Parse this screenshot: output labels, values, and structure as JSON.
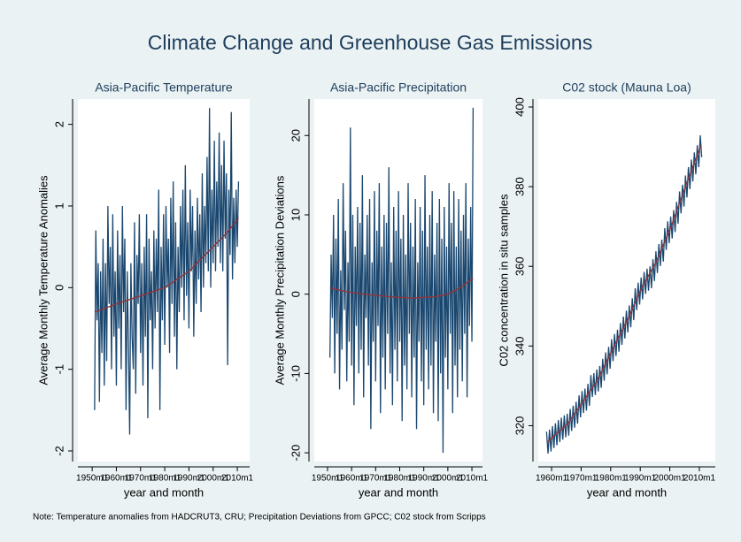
{
  "title": "Climate Change and Greenhouse Gas Emissions",
  "note": "Note: Temperature anomalies from HADCRUT3, CRU; Precipitation Deviations from GPCC; C02 stock from Scripps",
  "chart_data": [
    {
      "type": "line",
      "title": "Asia-Pacific Temperature",
      "xlabel": "year and month",
      "ylabel": "Average Monthly Temperature Anomalies",
      "xlim": [
        1944.1,
        2015.1
      ],
      "xticks": [
        {
          "value": 1950,
          "label": "1950m1"
        },
        {
          "value": 1960,
          "label": "1960m1"
        },
        {
          "value": 1970,
          "label": "1970m1"
        },
        {
          "value": 1980,
          "label": "1980m1"
        },
        {
          "value": 1990,
          "label": "1990m1"
        },
        {
          "value": 2000,
          "label": "2000m1"
        },
        {
          "value": 2010,
          "label": "2010m1"
        }
      ],
      "ylim": [
        -2.13,
        2.31
      ],
      "yticks": [
        -2,
        -1,
        0,
        1,
        2
      ],
      "series": [
        {
          "color": "#1a476f",
          "x": [
            1951,
            1951.5,
            1952,
            1952.5,
            1953,
            1953.5,
            1954,
            1954.5,
            1955,
            1955.5,
            1956,
            1956.5,
            1957,
            1957.5,
            1958,
            1958.5,
            1959,
            1959.5,
            1960,
            1960.5,
            1961,
            1961.5,
            1962,
            1962.5,
            1963,
            1963.5,
            1964,
            1964.5,
            1965,
            1965.5,
            1966,
            1966.5,
            1967,
            1967.5,
            1968,
            1968.5,
            1969,
            1969.5,
            1970,
            1970.5,
            1971,
            1971.5,
            1972,
            1972.5,
            1973,
            1973.5,
            1974,
            1974.5,
            1975,
            1975.5,
            1976,
            1976.5,
            1977,
            1977.5,
            1978,
            1978.5,
            1979,
            1979.5,
            1980,
            1980.5,
            1981,
            1981.5,
            1982,
            1982.5,
            1983,
            1983.5,
            1984,
            1984.5,
            1985,
            1985.5,
            1986,
            1986.5,
            1987,
            1987.5,
            1988,
            1988.5,
            1989,
            1989.5,
            1990,
            1990.5,
            1991,
            1991.5,
            1992,
            1992.5,
            1993,
            1993.5,
            1994,
            1994.5,
            1995,
            1995.5,
            1996,
            1996.5,
            1997,
            1997.5,
            1998,
            1998.5,
            1999,
            1999.5,
            2000,
            2000.5,
            2001,
            2001.5,
            2002,
            2002.5,
            2003,
            2003.5,
            2004,
            2004.5,
            2005,
            2005.5,
            2006,
            2006.5,
            2007,
            2007.5,
            2008,
            2008.5,
            2009,
            2009.5,
            2010,
            2010.5
          ],
          "values": [
            -1.5,
            0.7,
            -0.4,
            0.3,
            -1.4,
            0.2,
            -0.8,
            0.6,
            -1.2,
            0.3,
            -0.9,
            1.0,
            -0.2,
            0.5,
            -1.0,
            0.9,
            -0.6,
            0.2,
            -1.2,
            0.7,
            -0.5,
            0.4,
            -1.0,
            1.0,
            -0.3,
            0.6,
            -1.5,
            0.2,
            -0.7,
            -1.8,
            0.3,
            -0.6,
            -1.0,
            0.8,
            -1.3,
            0.4,
            -0.2,
            0.9,
            -0.8,
            0.3,
            -1.2,
            0.5,
            -0.6,
            0.9,
            -1.6,
            0.6,
            -0.4,
            0.2,
            -1.0,
            0.7,
            -0.5,
            0.6,
            -0.3,
            1.2,
            -1.5,
            0.5,
            -0.4,
            0.9,
            -0.7,
            1.0,
            0.0,
            0.6,
            -0.8,
            1.1,
            -0.2,
            1.3,
            -0.6,
            0.8,
            -1.0,
            0.5,
            -0.3,
            1.0,
            0.0,
            1.2,
            -0.4,
            1.5,
            -0.1,
            0.8,
            -0.5,
            1.2,
            0.2,
            1.0,
            -0.6,
            0.7,
            -0.2,
            1.1,
            0.1,
            0.9,
            -0.3,
            1.4,
            0.0,
            1.0,
            0.3,
            1.6,
            0.2,
            2.2,
            0.0,
            1.2,
            0.3,
            1.8,
            0.2,
            1.3,
            0.5,
            1.9,
            0.3,
            1.5,
            0.2,
            1.8,
            0.6,
            1.4,
            -0.95,
            1.2,
            0.4,
            2.15,
            0.1,
            1.1,
            0.3,
            1.2,
            0.5,
            1.3
          ]
        },
        {
          "color": "#90353b",
          "x": [
            1951,
            1960,
            1970,
            1980,
            1990,
            2000,
            2005,
            2010.5
          ],
          "values": [
            -0.3,
            -0.2,
            -0.1,
            0.0,
            0.2,
            0.5,
            0.65,
            0.85
          ]
        }
      ]
    },
    {
      "type": "line",
      "title": "Asia-Pacific Precipitation",
      "xlabel": "year and month",
      "ylabel": "Average Monthly Precipitation Deviations",
      "xlim": [
        1944.5,
        2014.4
      ],
      "xticks": [
        {
          "value": 1950,
          "label": "1950m1"
        },
        {
          "value": 1960,
          "label": "1960m1"
        },
        {
          "value": 1970,
          "label": "1970m1"
        },
        {
          "value": 1980,
          "label": "1980m1"
        },
        {
          "value": 1990,
          "label": "1990m1"
        },
        {
          "value": 2000,
          "label": "2000m1"
        },
        {
          "value": 2010,
          "label": "2010m1"
        }
      ],
      "ylim": [
        -21.1,
        24.6
      ],
      "yticks": [
        -20,
        -10,
        0,
        10,
        20
      ],
      "series": [
        {
          "color": "#1a476f",
          "x": [
            1951,
            1951.5,
            1952,
            1952.5,
            1953,
            1953.5,
            1954,
            1954.5,
            1955,
            1955.5,
            1956,
            1956.5,
            1957,
            1957.5,
            1958,
            1958.5,
            1959,
            1959.5,
            1960,
            1960.5,
            1961,
            1961.5,
            1962,
            1962.5,
            1963,
            1963.5,
            1964,
            1964.5,
            1965,
            1965.5,
            1966,
            1966.5,
            1967,
            1967.5,
            1968,
            1968.5,
            1969,
            1969.5,
            1970,
            1970.5,
            1971,
            1971.5,
            1972,
            1972.5,
            1973,
            1973.5,
            1974,
            1974.5,
            1975,
            1975.5,
            1976,
            1976.5,
            1977,
            1977.5,
            1978,
            1978.5,
            1979,
            1979.5,
            1980,
            1980.5,
            1981,
            1981.5,
            1982,
            1982.5,
            1983,
            1983.5,
            1984,
            1984.5,
            1985,
            1985.5,
            1986,
            1986.5,
            1987,
            1987.5,
            1988,
            1988.5,
            1989,
            1989.5,
            1990,
            1990.5,
            1991,
            1991.5,
            1992,
            1992.5,
            1993,
            1993.5,
            1994,
            1994.5,
            1995,
            1995.5,
            1996,
            1996.5,
            1997,
            1997.5,
            1998,
            1998.5,
            1999,
            1999.5,
            2000,
            2000.5,
            2001,
            2001.5,
            2002,
            2002.5,
            2003,
            2003.5,
            2004,
            2004.5,
            2005,
            2005.5,
            2006,
            2006.5,
            2007,
            2007.5,
            2008,
            2008.5,
            2009,
            2009.5,
            2010,
            2010.5
          ],
          "values": [
            -8,
            5,
            -3,
            10,
            -10,
            7,
            -5,
            12,
            -12,
            3,
            -7,
            14,
            -2,
            8,
            -11,
            4,
            -6,
            21,
            -9,
            10,
            -14,
            6,
            -4,
            11,
            -10,
            9,
            -7,
            15,
            -13,
            5,
            -3,
            10,
            -9,
            12,
            -17,
            4,
            -6,
            13,
            -11,
            8,
            -4,
            14,
            -15,
            6,
            -8,
            10,
            -12,
            9,
            -5,
            16,
            -10,
            4,
            -14,
            11,
            -7,
            8,
            -11,
            13,
            -6,
            7,
            -16,
            10,
            -9,
            5,
            -12,
            14,
            -5,
            9,
            -13,
            6,
            -8,
            12,
            -17,
            4,
            -6,
            11,
            -11,
            8,
            -14,
            15,
            -7,
            6,
            -12,
            10,
            -9,
            13,
            -15,
            5,
            -6,
            9,
            -16,
            12,
            -10,
            7,
            -20,
            11,
            -8,
            6,
            -12,
            14,
            -5,
            9,
            -15,
            13,
            -9,
            6,
            -13,
            12,
            -7,
            8,
            -11,
            10,
            -5,
            14,
            -13,
            7,
            -4,
            11,
            -6,
            23.5
          ]
        },
        {
          "color": "#90353b",
          "x": [
            1951,
            1958,
            1965,
            1975,
            1985,
            1995,
            2000,
            2005,
            2010.5
          ],
          "values": [
            0.8,
            0.3,
            0,
            -0.3,
            -0.5,
            -0.3,
            0,
            0.8,
            2
          ]
        }
      ]
    },
    {
      "type": "line",
      "title": "C02 stock (Mauna Loa)",
      "xlabel": "year and month",
      "ylabel": "C02 concentration in situ samples",
      "xlim": [
        1955.5,
        2015.4
      ],
      "xticks": [
        {
          "value": 1960,
          "label": "1960m1"
        },
        {
          "value": 1970,
          "label": "1970m1"
        },
        {
          "value": 1980,
          "label": "1980m1"
        },
        {
          "value": 1990,
          "label": "1990m1"
        },
        {
          "value": 2000,
          "label": "2000m1"
        },
        {
          "value": 2010,
          "label": "2010m1"
        }
      ],
      "ylim": [
        311,
        402
      ],
      "yticks": [
        320,
        340,
        360,
        380,
        400
      ],
      "series": [
        {
          "color": "#1a476f",
          "x": [
            1958.3,
            1958.8,
            1959.3,
            1959.8,
            1960.3,
            1960.8,
            1961.3,
            1961.8,
            1962.3,
            1962.8,
            1963.3,
            1963.8,
            1964.3,
            1964.8,
            1965.3,
            1965.8,
            1966.3,
            1966.8,
            1967.3,
            1967.8,
            1968.3,
            1968.8,
            1969.3,
            1969.8,
            1970.3,
            1970.8,
            1971.3,
            1971.8,
            1972.3,
            1972.8,
            1973.3,
            1973.8,
            1974.3,
            1974.8,
            1975.3,
            1975.8,
            1976.3,
            1976.8,
            1977.3,
            1977.8,
            1978.3,
            1978.8,
            1979.3,
            1979.8,
            1980.3,
            1980.8,
            1981.3,
            1981.8,
            1982.3,
            1982.8,
            1983.3,
            1983.8,
            1984.3,
            1984.8,
            1985.3,
            1985.8,
            1986.3,
            1986.8,
            1987.3,
            1987.8,
            1988.3,
            1988.8,
            1989.3,
            1989.8,
            1990.3,
            1990.8,
            1991.3,
            1991.8,
            1992.3,
            1992.8,
            1993.3,
            1993.8,
            1994.3,
            1994.8,
            1995.3,
            1995.8,
            1996.3,
            1996.8,
            1997.3,
            1997.8,
            1998.3,
            1998.8,
            1999.3,
            1999.8,
            2000.3,
            2000.8,
            2001.3,
            2001.8,
            2002.3,
            2002.8,
            2003.3,
            2003.8,
            2004.3,
            2004.8,
            2005.3,
            2005.8,
            2006.3,
            2006.8,
            2007.3,
            2007.8,
            2008.3,
            2008.8,
            2009.3,
            2009.8,
            2010.3,
            2010.8
          ],
          "values": [
            318.5,
            313,
            319,
            313.5,
            319.9,
            314.4,
            320.6,
            315.1,
            321.4,
            315.9,
            322,
            316.5,
            322.6,
            317.1,
            323,
            317.5,
            324.2,
            318.7,
            325,
            319.5,
            326,
            320.5,
            327.6,
            322.1,
            328.7,
            323.2,
            329.3,
            323.8,
            330.5,
            325,
            332.7,
            327.2,
            333.2,
            327.7,
            334.1,
            328.6,
            335,
            329.5,
            336.8,
            331.3,
            338.4,
            332.9,
            339.8,
            334.3,
            341.7,
            336.2,
            343,
            337.5,
            344.1,
            338.6,
            345.8,
            340.3,
            347.4,
            341.9,
            348.9,
            343.4,
            350.2,
            344.7,
            352,
            346.5,
            354.5,
            349,
            355.9,
            350.4,
            357.2,
            351.7,
            358.6,
            353.1,
            359.4,
            353.9,
            360,
            354.5,
            361.8,
            356.3,
            363.8,
            358.3,
            365.6,
            360.1,
            366.7,
            361.2,
            369.6,
            364.1,
            371.3,
            365.8,
            372.5,
            367,
            374.1,
            368.6,
            376.2,
            370.7,
            378.8,
            373.3,
            380.5,
            375,
            382.8,
            377.3,
            384.9,
            379.4,
            386.8,
            381.3,
            388.6,
            383.1,
            390.4,
            384.9,
            392.9,
            387.4
          ]
        },
        {
          "color": "#90353b",
          "x": [
            1958.5,
            1960.5,
            1965.5,
            1970.5,
            1975.5,
            1980.5,
            1985.5,
            1990.5,
            1995.5,
            2000.5,
            2005.5,
            2010.5
          ],
          "values": [
            315.8,
            317.2,
            320.5,
            325.9,
            331.4,
            339,
            346.3,
            354.6,
            361.3,
            370.1,
            380.4,
            390.3
          ]
        }
      ]
    }
  ]
}
